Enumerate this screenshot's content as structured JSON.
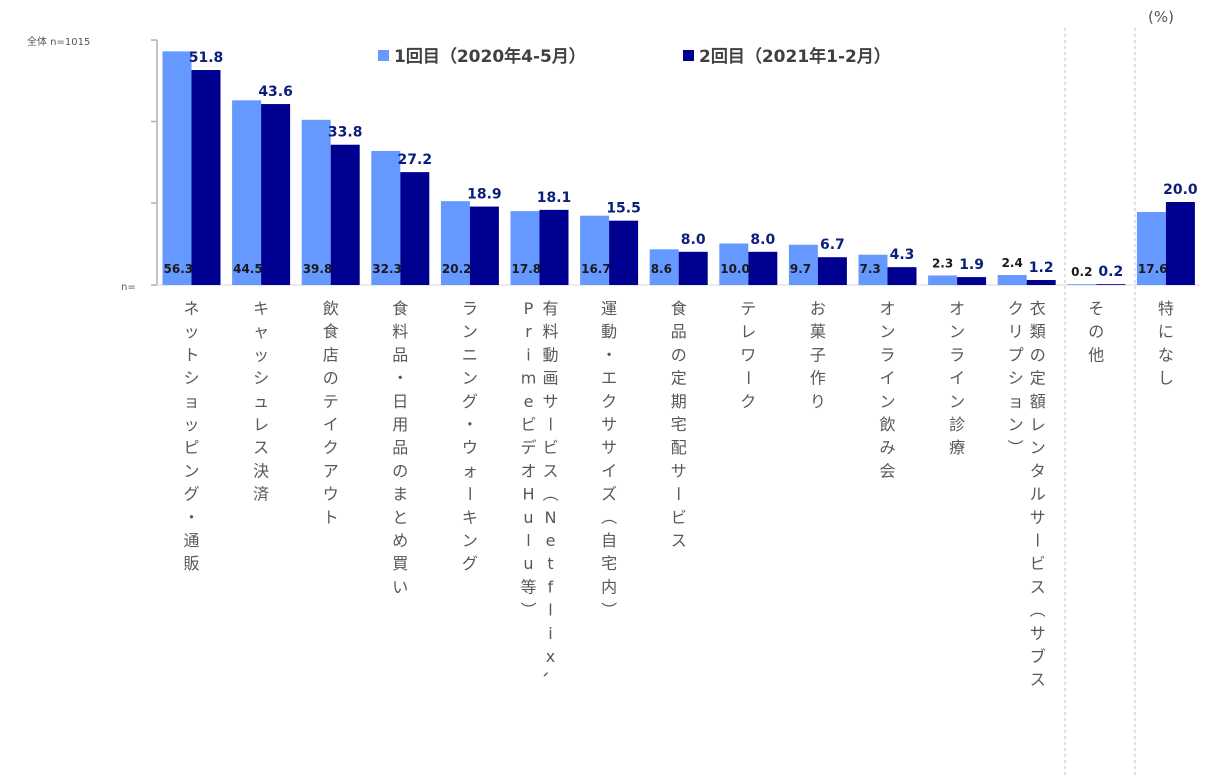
{
  "chart_data": {
    "type": "bar",
    "unit": "(%)",
    "n_total_label": "全体 n=1015",
    "n_axis_label": "n=",
    "series": [
      {
        "name": "1回目（2020年4-5月）",
        "color": "#6699ff",
        "values": [
          56.3,
          44.5,
          39.8,
          32.3,
          20.2,
          17.8,
          16.7,
          8.6,
          10.0,
          9.7,
          7.3,
          2.3,
          2.4,
          0.2,
          17.6
        ]
      },
      {
        "name": "2回目（2021年1-2月）",
        "color": "#000090",
        "values": [
          51.8,
          43.6,
          33.8,
          27.2,
          18.9,
          18.1,
          15.5,
          8.0,
          8.0,
          6.7,
          4.3,
          1.9,
          1.2,
          0.2,
          20.0
        ]
      }
    ],
    "categories": [
      "ネットショッピング・通販",
      "キャッシュレス決済",
      "飲食店のテイクアウト",
      "食料品・日用品のまとめ買い",
      "ランニング・ウォーキング",
      "有料動画サービス（Netflix、PrimeビデオHulu等）",
      "運動・エクササイズ（自宅内）",
      "食品の定期宅配サービス",
      "テレワーク",
      "お菓子作り",
      "オンライン飲み会",
      "オンライン診療",
      "衣類の定額レンタルサービス（サブスクリプション）",
      "その他",
      "特になし"
    ],
    "category_columns": [
      [
        [
          "ネットショッピング・通販"
        ]
      ],
      [
        [
          "キャッシュレス決済"
        ]
      ],
      [
        [
          "飲食店のテイクアウト"
        ]
      ],
      [
        [
          "食料品・日用品のまとめ買い"
        ]
      ],
      [
        [
          "ランニング・ウォーキング"
        ]
      ],
      [
        [
          "有料動画サービス（Netflix、"
        ],
        [
          "PrimeビデオHulu等）"
        ]
      ],
      [
        [
          "運動・エクササイズ（自宅内）"
        ]
      ],
      [
        [
          "食品の定期宅配サービス"
        ]
      ],
      [
        [
          "テレワーク"
        ]
      ],
      [
        [
          "お菓子作り"
        ]
      ],
      [
        [
          "オンライン飲み会"
        ]
      ],
      [
        [
          "オンライン診療"
        ]
      ],
      [
        [
          "衣類の定額レンタルサービス（サブス"
        ],
        [
          "クリプション）"
        ]
      ],
      [
        [
          "その他"
        ]
      ],
      [
        [
          "特になし"
        ]
      ]
    ],
    "ylim": [
      0,
      60
    ],
    "grid": false,
    "legend": "top"
  }
}
